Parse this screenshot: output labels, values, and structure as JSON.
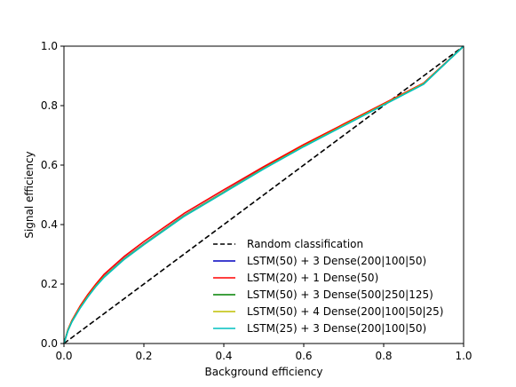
{
  "chart_data": {
    "type": "line",
    "xlabel": "Background efficiency",
    "ylabel": "Signal efficiency",
    "xlim": [
      0.0,
      1.0
    ],
    "ylim": [
      0.0,
      1.0
    ],
    "grid": false,
    "legend_position": "bottom-right",
    "x_ticks": [
      "0.0",
      "0.2",
      "0.4",
      "0.6",
      "0.8",
      "1.0"
    ],
    "y_ticks": [
      "0.0",
      "0.2",
      "0.4",
      "0.6",
      "0.8",
      "1.0"
    ],
    "random": {
      "name": "Random classification",
      "color": "#000000",
      "style": "dashed",
      "x": [
        0.0,
        1.0
      ],
      "y": [
        0.0,
        1.0
      ]
    },
    "series": [
      {
        "name": "LSTM(50) + 3 Dense(200|100|50)",
        "color": "#0000bf",
        "x": [
          0,
          0.01,
          0.02,
          0.04,
          0.06,
          0.08,
          0.1,
          0.15,
          0.2,
          0.3,
          0.4,
          0.5,
          0.6,
          0.7,
          0.8,
          0.9,
          1.0
        ],
        "y": [
          0,
          0.045,
          0.075,
          0.12,
          0.16,
          0.195,
          0.225,
          0.285,
          0.335,
          0.43,
          0.51,
          0.59,
          0.665,
          0.735,
          0.805,
          0.875,
          1.0
        ]
      },
      {
        "name": "LSTM(20) + 1 Dense(50)",
        "color": "#ff0000",
        "x": [
          0,
          0.01,
          0.02,
          0.04,
          0.06,
          0.08,
          0.1,
          0.15,
          0.2,
          0.3,
          0.4,
          0.5,
          0.6,
          0.7,
          0.8,
          0.9,
          1.0
        ],
        "y": [
          0,
          0.047,
          0.078,
          0.125,
          0.165,
          0.2,
          0.232,
          0.292,
          0.343,
          0.437,
          0.517,
          0.595,
          0.669,
          0.738,
          0.807,
          0.876,
          1.0
        ]
      },
      {
        "name": "LSTM(50) + 3 Dense(500|250|125)",
        "color": "#008000",
        "x": [
          0,
          0.01,
          0.02,
          0.04,
          0.06,
          0.08,
          0.1,
          0.15,
          0.2,
          0.3,
          0.4,
          0.5,
          0.6,
          0.7,
          0.8,
          0.9,
          1.0
        ],
        "y": [
          0,
          0.044,
          0.074,
          0.119,
          0.158,
          0.193,
          0.223,
          0.283,
          0.333,
          0.428,
          0.508,
          0.588,
          0.663,
          0.733,
          0.803,
          0.873,
          1.0
        ]
      },
      {
        "name": "LSTM(50) + 4 Dense(200|100|50|25)",
        "color": "#bfbf00",
        "x": [
          0,
          0.01,
          0.02,
          0.04,
          0.06,
          0.08,
          0.1,
          0.15,
          0.2,
          0.3,
          0.4,
          0.5,
          0.6,
          0.7,
          0.8,
          0.9,
          1.0
        ],
        "y": [
          0,
          0.045,
          0.075,
          0.12,
          0.159,
          0.194,
          0.224,
          0.284,
          0.334,
          0.429,
          0.509,
          0.589,
          0.664,
          0.734,
          0.804,
          0.874,
          1.0
        ]
      },
      {
        "name": "LSTM(25) + 3 Dense(200|100|50)",
        "color": "#00bfbf",
        "x": [
          0,
          0.01,
          0.02,
          0.04,
          0.06,
          0.08,
          0.1,
          0.15,
          0.2,
          0.3,
          0.4,
          0.5,
          0.6,
          0.7,
          0.8,
          0.9,
          1.0
        ],
        "y": [
          0,
          0.043,
          0.073,
          0.118,
          0.157,
          0.192,
          0.222,
          0.282,
          0.332,
          0.427,
          0.507,
          0.587,
          0.662,
          0.732,
          0.802,
          0.872,
          1.0
        ]
      }
    ]
  }
}
